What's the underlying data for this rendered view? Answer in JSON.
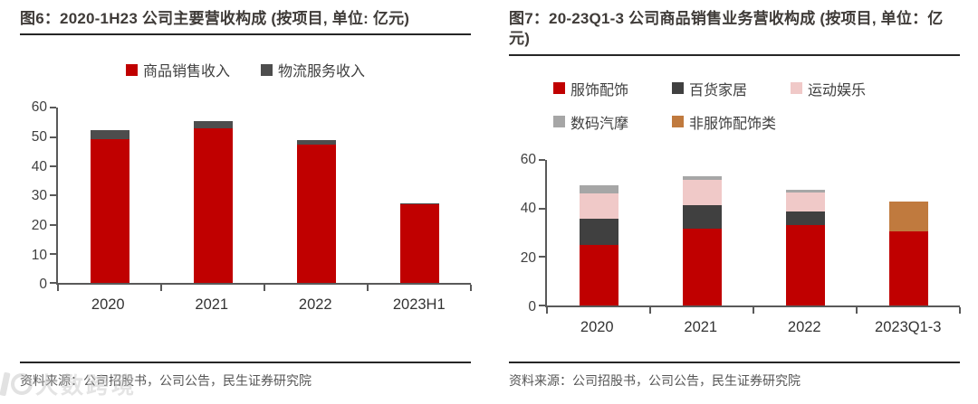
{
  "watermark": {
    "text": "大数跨境"
  },
  "colors": {
    "accent_red": "#C00000",
    "dark_gray": "#4D4D4D",
    "axis_gray": "#595959",
    "rule_dark": "#262626",
    "pink": "#F0C9C8",
    "light_gray": "#A6A6A6",
    "brown": "#C07A3E"
  },
  "charts": [
    {
      "title": "图6：2020-1H23 公司主要营收构成 (按项目, 单位: 亿元)",
      "source": "资料来源：公司招股书，公司公告，民生证券研究院",
      "chart_data": {
        "type": "bar",
        "stacked": true,
        "legend_position": "top",
        "grid": false,
        "title": "2020-1H23 公司主要营收构成 (按项目, 单位: 亿元)",
        "xlabel": "",
        "ylabel": "",
        "ylim": [
          0,
          60
        ],
        "yticks": [
          0,
          10,
          20,
          30,
          40,
          50,
          60
        ],
        "categories": [
          "2020",
          "2021",
          "2022",
          "2023H1"
        ],
        "series": [
          {
            "name": "商品销售收入",
            "color": "#C00000",
            "values": [
              49.3,
              53.0,
              47.4,
              27.0
            ]
          },
          {
            "name": "物流服务收入",
            "color": "#4D4D4D",
            "values": [
              3.0,
              2.6,
              1.5,
              0.5
            ]
          }
        ]
      }
    },
    {
      "title": "图7：20-23Q1-3 公司商品销售业务营收构成 (按项目, 单位：亿元)",
      "source": "资料来源：公司招股书，公司公告，民生证券研究院",
      "chart_data": {
        "type": "bar",
        "stacked": true,
        "legend_position": "top",
        "grid": false,
        "title": "20-23Q1-3 公司商品销售业务营收构成 (按项目, 单位：亿元)",
        "xlabel": "",
        "ylabel": "",
        "ylim": [
          0,
          60
        ],
        "yticks": [
          0,
          20,
          40,
          60
        ],
        "categories": [
          "2020",
          "2021",
          "2022",
          "2023Q1-3"
        ],
        "series": [
          {
            "name": "服饰配饰",
            "color": "#C00000",
            "values": [
              24.8,
              31.7,
              33.1,
              30.5
            ]
          },
          {
            "name": "百货家居",
            "color": "#404040",
            "values": [
              11.1,
              9.6,
              5.5,
              0
            ]
          },
          {
            "name": "运动娱乐",
            "color": "#F0C9C8",
            "values": [
              10.4,
              10.3,
              8.1,
              0
            ]
          },
          {
            "name": "数码汽摩",
            "color": "#A6A6A6",
            "values": [
              3.3,
              1.7,
              0.8,
              0
            ]
          },
          {
            "name": "非服饰配饰类",
            "color": "#C07A3E",
            "values": [
              0,
              0,
              0,
              12.2
            ]
          }
        ]
      }
    }
  ]
}
